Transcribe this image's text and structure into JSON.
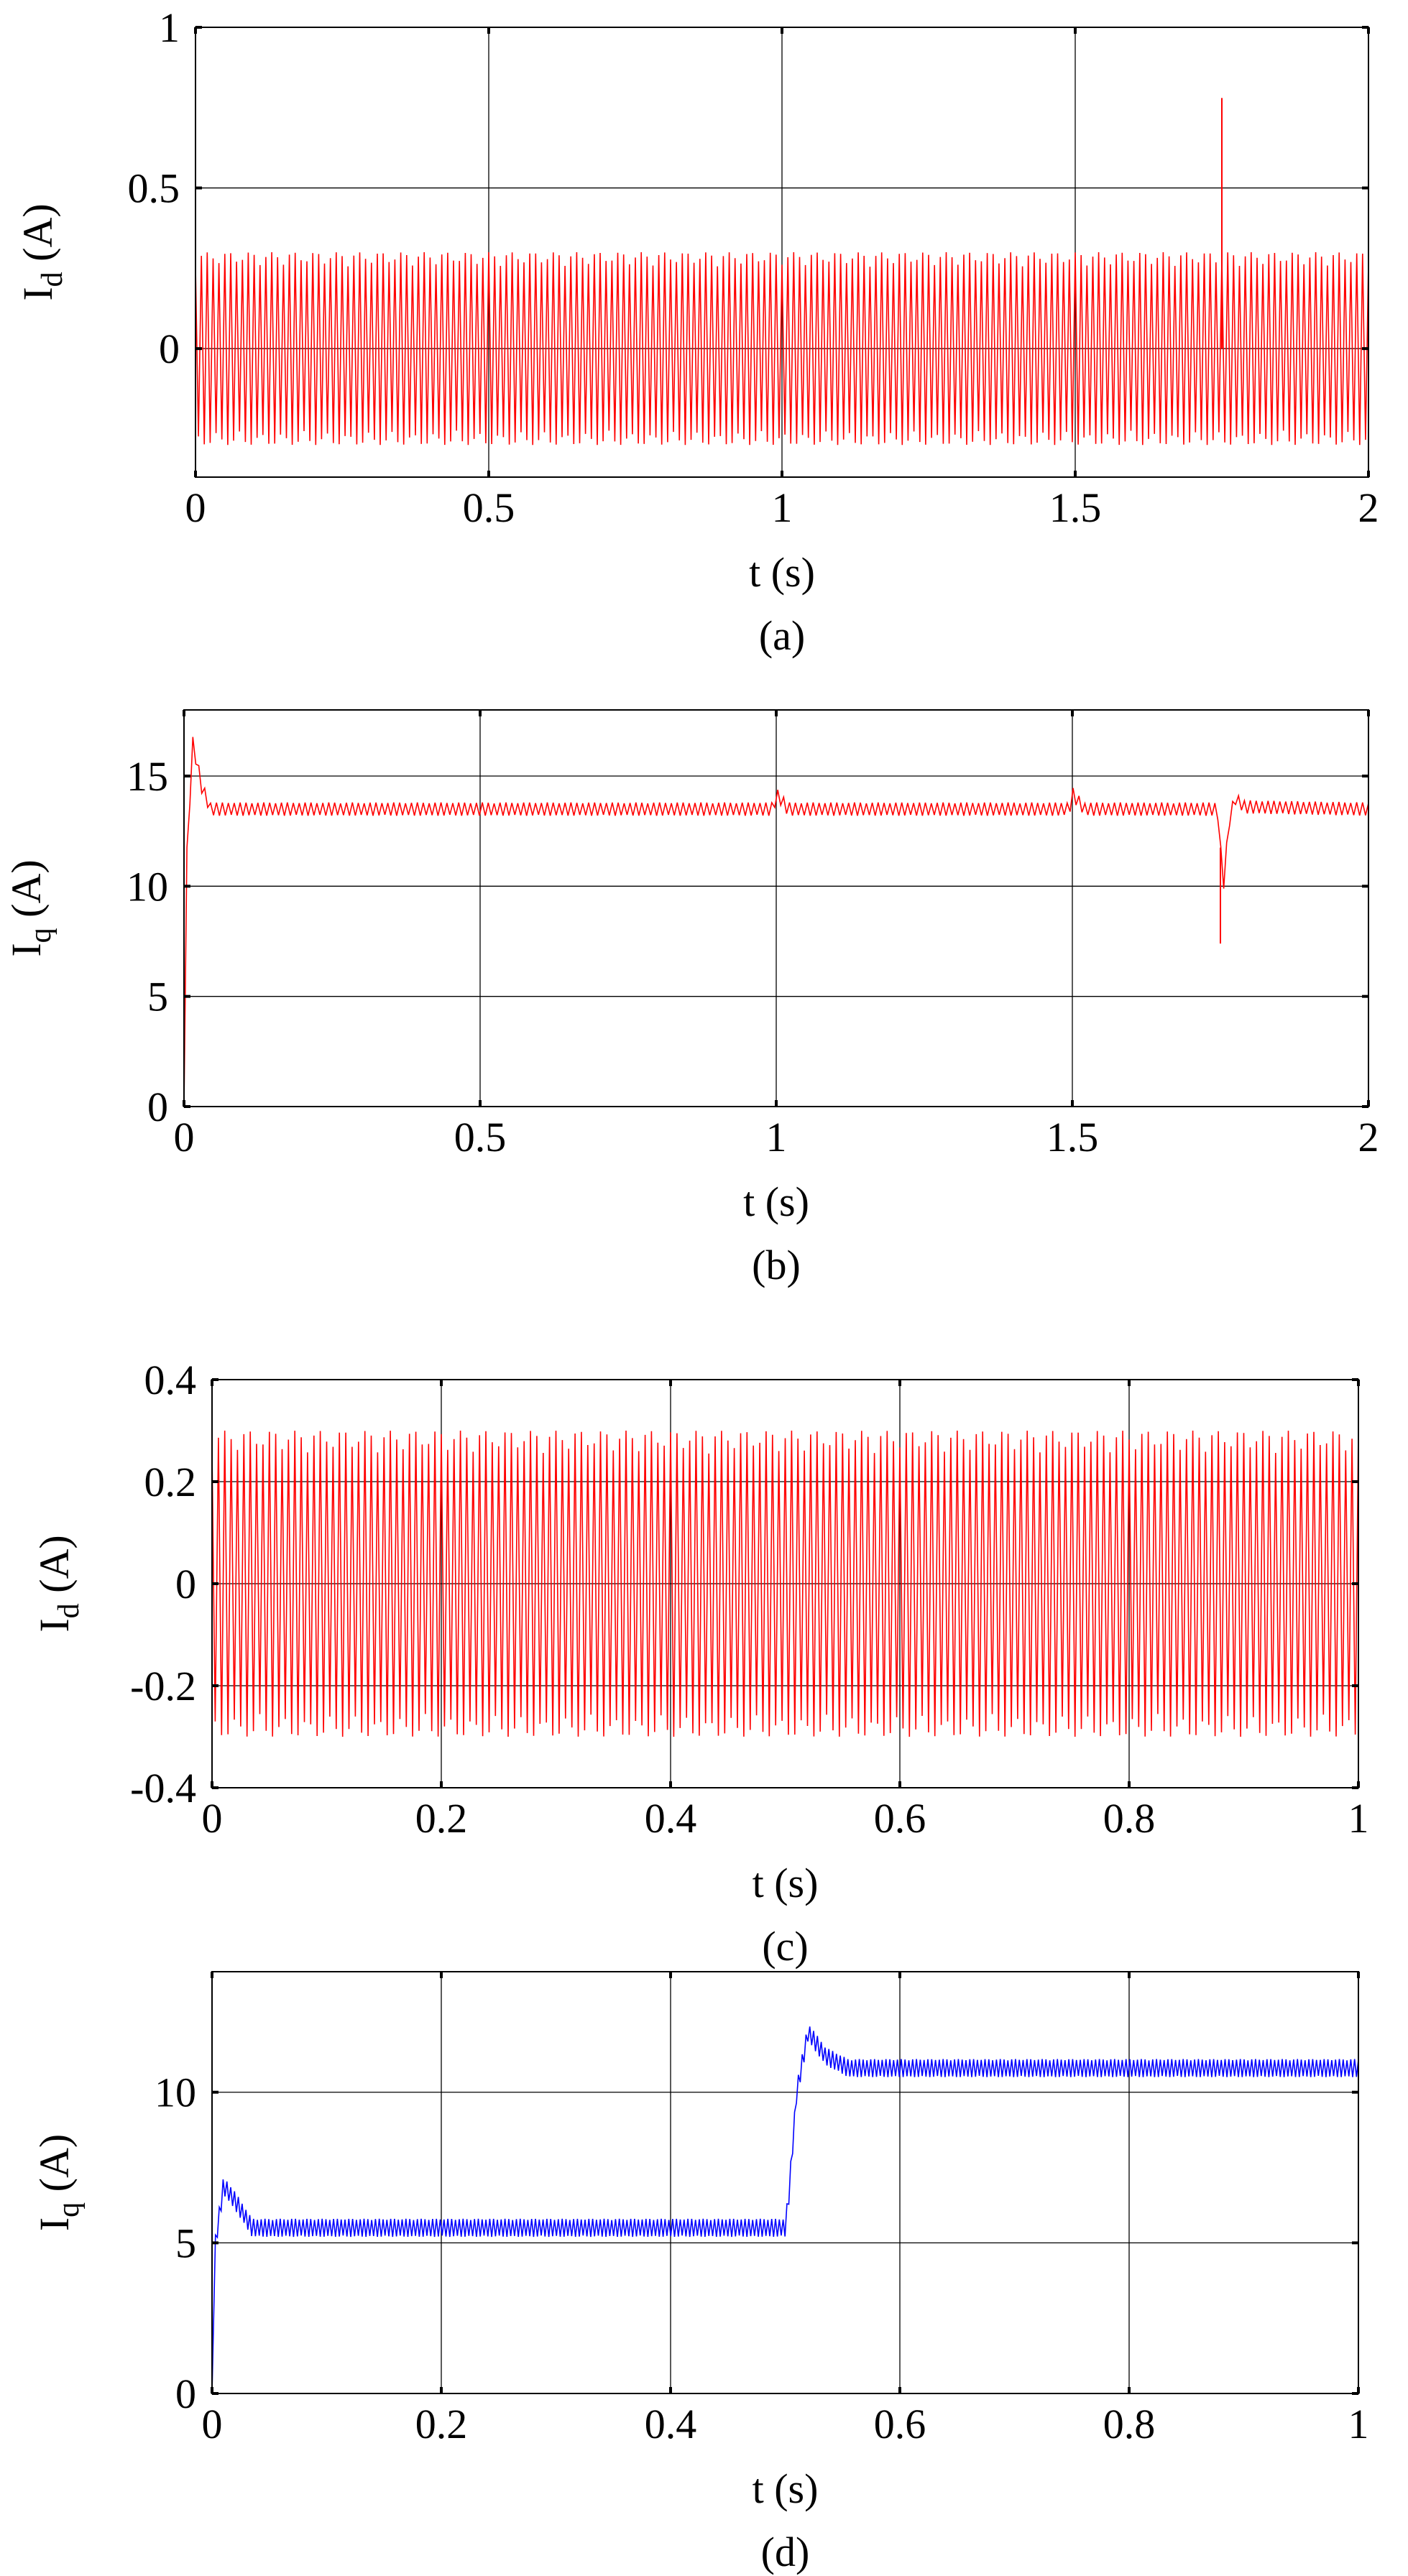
{
  "chart_data": [
    {
      "type": "line",
      "panel_label": "(a)",
      "xlabel": "t (s)",
      "ylabel": "I",
      "ylabel_sub": "d",
      "ylabel_unit": " (A)",
      "xlim": [
        0,
        2
      ],
      "ylim": [
        -0.4,
        1
      ],
      "xticks": [
        0,
        0.5,
        1,
        1.5,
        2
      ],
      "xtick_labels": [
        "0",
        "0.5",
        "1",
        "1.5",
        "2"
      ],
      "yticks": [
        0,
        0.5,
        1
      ],
      "ytick_labels": [
        "0",
        "0.5",
        "1"
      ],
      "grid": true,
      "color": "#ff0000",
      "series": [
        {
          "style": "ripple",
          "x_start": 0,
          "x_end": 2,
          "base": [
            [
              0,
              0
            ],
            [
              2,
              0
            ]
          ],
          "amplitude": 0.3,
          "cycles": 200,
          "spikes": [
            {
              "x": 1.75,
              "y": 0.78
            }
          ]
        }
      ]
    },
    {
      "type": "line",
      "panel_label": "(b)",
      "xlabel": "t (s)",
      "ylabel": "I",
      "ylabel_sub": "q",
      "ylabel_unit": " (A)",
      "xlim": [
        0,
        2
      ],
      "ylim": [
        0,
        18
      ],
      "xticks": [
        0,
        0.5,
        1,
        1.5,
        2
      ],
      "xtick_labels": [
        "0",
        "0.5",
        "1",
        "1.5",
        "2"
      ],
      "yticks": [
        0,
        5,
        10,
        15
      ],
      "ytick_labels": [
        "0",
        "5",
        "10",
        "15"
      ],
      "grid": true,
      "color": "#ff0000",
      "series": [
        {
          "style": "ripple",
          "x_start": 0.005,
          "x_end": 2,
          "base": [
            [
              0,
              0
            ],
            [
              0.005,
              11.5
            ],
            [
              0.015,
              16.5
            ],
            [
              0.03,
              14.5
            ],
            [
              0.045,
              13.5
            ],
            [
              0.995,
              13.5
            ],
            [
              1.0,
              14.2
            ],
            [
              1.02,
              13.5
            ],
            [
              1.495,
              13.5
            ],
            [
              1.5,
              14.2
            ],
            [
              1.52,
              13.5
            ],
            [
              1.745,
              13.5
            ],
            [
              1.755,
              10.0
            ],
            [
              1.765,
              13.0
            ],
            [
              1.775,
              14.0
            ],
            [
              1.79,
              13.6
            ],
            [
              2,
              13.5
            ]
          ],
          "amplitude": 0.3,
          "cycles": 200,
          "spikes": [
            {
              "x": 1.75,
              "y": 7.4
            }
          ]
        }
      ]
    },
    {
      "type": "line",
      "panel_label": "(c)",
      "xlabel": "t (s)",
      "ylabel": "I",
      "ylabel_sub": "d",
      "ylabel_unit": " (A)",
      "xlim": [
        0,
        1
      ],
      "ylim": [
        -0.4,
        0.4
      ],
      "xticks": [
        0,
        0.2,
        0.4,
        0.6,
        0.8,
        1
      ],
      "xtick_labels": [
        "0",
        "0.2",
        "0.4",
        "0.6",
        "0.8",
        "1"
      ],
      "yticks": [
        -0.4,
        -0.2,
        0,
        0.2,
        0.4
      ],
      "ytick_labels": [
        "-0.4",
        "-0.2",
        "0",
        "0.2",
        "0.4"
      ],
      "grid": true,
      "color": "#ff0000",
      "series": [
        {
          "style": "ripple",
          "x_start": 0,
          "x_end": 1,
          "base": [
            [
              0,
              0
            ],
            [
              1,
              0
            ]
          ],
          "amplitude": 0.3,
          "cycles": 180,
          "spikes": []
        }
      ]
    },
    {
      "type": "line",
      "panel_label": "(d)",
      "xlabel": "t (s)",
      "ylabel": "I",
      "ylabel_sub": "q",
      "ylabel_unit": " (A)",
      "xlim": [
        0,
        1
      ],
      "ylim": [
        0,
        14
      ],
      "xticks": [
        0,
        0.2,
        0.4,
        0.6,
        0.8,
        1
      ],
      "xtick_labels": [
        "0",
        "0.2",
        "0.4",
        "0.6",
        "0.8",
        "1"
      ],
      "yticks": [
        0,
        5,
        10
      ],
      "ytick_labels": [
        "0",
        "5",
        "10"
      ],
      "grid": true,
      "color": "#0000ff",
      "series": [
        {
          "style": "ripple",
          "x_start": 0.003,
          "x_end": 1,
          "base": [
            [
              0,
              0
            ],
            [
              0.003,
              5.0
            ],
            [
              0.01,
              6.9
            ],
            [
              0.02,
              6.4
            ],
            [
              0.035,
              5.5
            ],
            [
              0.5,
              5.5
            ],
            [
              0.503,
              6.5
            ],
            [
              0.51,
              10.0
            ],
            [
              0.52,
              12.0
            ],
            [
              0.535,
              11.2
            ],
            [
              0.555,
              10.8
            ],
            [
              1,
              10.8
            ]
          ],
          "amplitude": 0.3,
          "cycles": 300,
          "spikes": []
        }
      ]
    }
  ]
}
